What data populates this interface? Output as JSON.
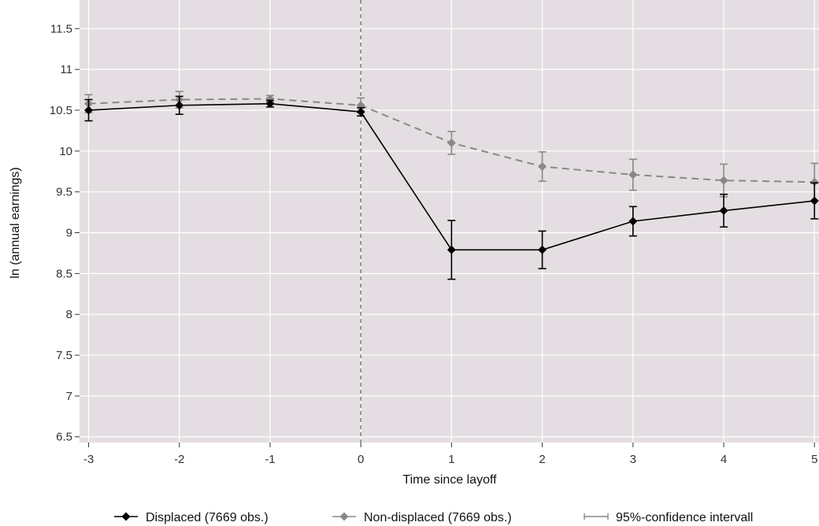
{
  "chart_data": {
    "type": "line",
    "title": "",
    "xlabel": "Time since layoff",
    "ylabel": "ln (annual earnings)",
    "x": [
      -3,
      -2,
      -1,
      0,
      1,
      2,
      3,
      4,
      5
    ],
    "x_tick_labels": [
      "-3",
      "-2",
      "-1",
      "0",
      "1",
      "2",
      "3",
      "4",
      "5"
    ],
    "y_ticks": [
      6.5,
      7,
      7.5,
      8,
      8.5,
      9,
      9.5,
      10,
      10.5,
      11,
      11.5
    ],
    "y_tick_labels": [
      "6.5",
      "7",
      "7.5",
      "8",
      "8.5",
      "9",
      "9.5",
      "10",
      "10.5",
      "11",
      "11.5"
    ],
    "xlim": [
      -3.1,
      5.05
    ],
    "ylim": [
      6.43,
      11.85
    ],
    "grid": true,
    "reference_line": {
      "x": 0,
      "style": "dashed"
    },
    "legend_position": "bottom",
    "series": [
      {
        "name": "Displaced (7669 obs.)",
        "color": "#000000",
        "line_style": "solid",
        "marker": "diamond",
        "values": [
          10.5,
          10.56,
          10.58,
          10.48,
          8.79,
          8.79,
          9.14,
          9.27,
          9.39
        ],
        "ci_low": [
          10.37,
          10.45,
          10.54,
          10.43,
          8.43,
          8.56,
          8.96,
          9.07,
          9.17
        ],
        "ci_high": [
          10.63,
          10.67,
          10.62,
          10.53,
          9.15,
          9.02,
          9.32,
          9.47,
          9.61
        ]
      },
      {
        "name": "Non-displaced (7669 obs.)",
        "color": "#888888",
        "line_style": "dashed",
        "marker": "diamond",
        "values": [
          10.58,
          10.63,
          10.64,
          10.56,
          10.1,
          9.81,
          9.71,
          9.64,
          9.62
        ],
        "ci_low": [
          10.47,
          10.53,
          10.6,
          10.47,
          9.96,
          9.63,
          9.52,
          9.44,
          9.39
        ],
        "ci_high": [
          10.69,
          10.73,
          10.68,
          10.65,
          10.24,
          9.99,
          9.9,
          9.84,
          9.85
        ]
      }
    ],
    "legend": [
      {
        "label": "Displaced (7669 obs.)",
        "kind": "series",
        "color": "#000000"
      },
      {
        "label": "Non-displaced (7669 obs.)",
        "kind": "series",
        "color": "#888888"
      },
      {
        "label": "95%-confidence intervall",
        "kind": "errorbar",
        "color": "#888888"
      }
    ],
    "colors": {
      "panel_background": "#e4dee2",
      "grid": "#ffffff",
      "reference_line": "#777777"
    }
  }
}
